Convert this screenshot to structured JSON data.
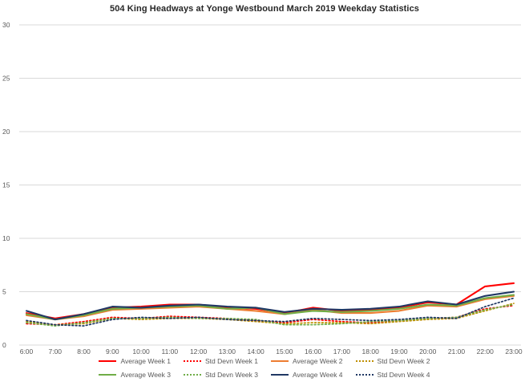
{
  "chart_data": {
    "type": "line",
    "title": "504 King Headways at Yonge Westbound March 2019 Weekday Statistics",
    "xlabel": "",
    "ylabel": "",
    "ylim": [
      0,
      30
    ],
    "y_ticks": [
      0,
      5,
      10,
      15,
      20,
      25,
      30
    ],
    "grid": true,
    "legend_position": "bottom",
    "axis_text_color": "#595959",
    "gridline_color": "#D9D9D9",
    "categories": [
      "6:00",
      "7:00",
      "8:00",
      "9:00",
      "10:00",
      "11:00",
      "12:00",
      "13:00",
      "14:00",
      "15:00",
      "16:00",
      "17:00",
      "18:00",
      "19:00",
      "20:00",
      "21:00",
      "22:00",
      "23:00"
    ],
    "series": [
      {
        "name": "Average Week 1",
        "color": "#FF0000",
        "style": "solid",
        "values": [
          3.0,
          2.5,
          2.9,
          3.5,
          3.6,
          3.8,
          3.8,
          3.5,
          3.4,
          3.0,
          3.5,
          3.2,
          3.3,
          3.5,
          4.0,
          3.8,
          5.5,
          5.8
        ]
      },
      {
        "name": "Std Devn Week 1",
        "color": "#FF0000",
        "style": "dotted",
        "values": [
          2.0,
          1.9,
          2.2,
          2.6,
          2.5,
          2.7,
          2.6,
          2.5,
          2.3,
          2.1,
          2.4,
          2.2,
          2.1,
          2.3,
          2.5,
          2.6,
          3.4,
          3.7
        ]
      },
      {
        "name": "Average Week 2",
        "color": "#ED7D31",
        "style": "solid",
        "values": [
          2.8,
          2.4,
          2.7,
          3.3,
          3.4,
          3.5,
          3.6,
          3.4,
          3.2,
          2.9,
          3.3,
          3.0,
          3.0,
          3.2,
          3.7,
          3.6,
          4.3,
          4.6
        ]
      },
      {
        "name": "Std Devn Week 2",
        "color": "#BF8F00",
        "style": "dotted",
        "values": [
          2.2,
          1.9,
          2.0,
          2.5,
          2.4,
          2.5,
          2.5,
          2.4,
          2.2,
          2.0,
          2.1,
          2.1,
          2.0,
          2.2,
          2.4,
          2.5,
          3.2,
          3.9
        ]
      },
      {
        "name": "Average Week 3",
        "color": "#70AD47",
        "style": "solid",
        "values": [
          2.9,
          2.4,
          2.8,
          3.4,
          3.5,
          3.6,
          3.7,
          3.4,
          3.5,
          2.9,
          3.2,
          3.1,
          3.2,
          3.4,
          3.8,
          3.7,
          4.4,
          4.7
        ]
      },
      {
        "name": "Std Devn Week 3",
        "color": "#70AD47",
        "style": "dotted",
        "values": [
          2.1,
          1.8,
          2.1,
          2.5,
          2.5,
          2.6,
          2.5,
          2.5,
          2.4,
          1.9,
          1.9,
          2.0,
          2.2,
          2.3,
          2.5,
          2.6,
          3.3,
          3.8
        ]
      },
      {
        "name": "Average Week 4",
        "color": "#203864",
        "style": "solid",
        "values": [
          3.2,
          2.4,
          2.9,
          3.6,
          3.5,
          3.7,
          3.8,
          3.6,
          3.5,
          3.1,
          3.4,
          3.3,
          3.4,
          3.6,
          4.1,
          3.8,
          4.6,
          5.0
        ]
      },
      {
        "name": "Std Devn Week 4",
        "color": "#203864",
        "style": "dotted",
        "values": [
          2.3,
          1.9,
          1.8,
          2.4,
          2.6,
          2.5,
          2.6,
          2.4,
          2.3,
          2.2,
          2.5,
          2.4,
          2.3,
          2.4,
          2.6,
          2.5,
          3.6,
          4.4
        ]
      }
    ]
  }
}
